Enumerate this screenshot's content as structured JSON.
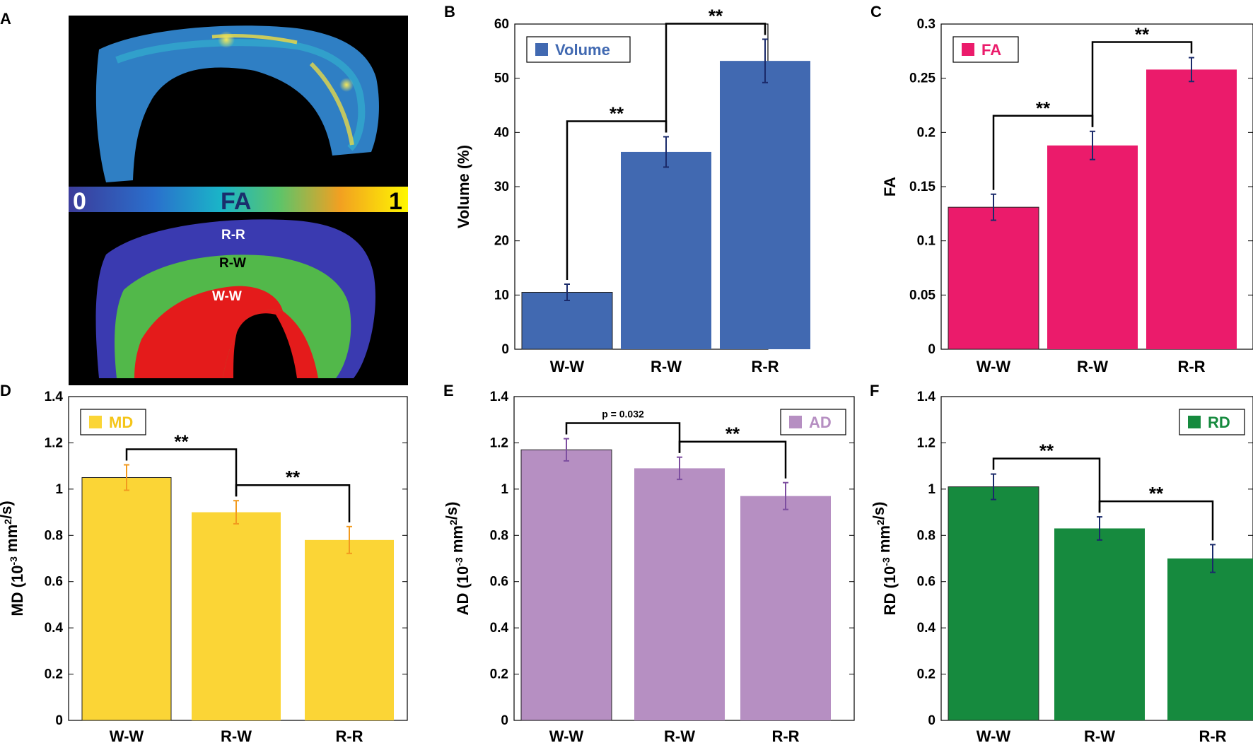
{
  "panel_a": {
    "label": "A",
    "colorbar": {
      "min": "0",
      "name": "FA",
      "max": "1"
    },
    "regions": [
      "R-R",
      "R-W",
      "W-W"
    ]
  },
  "chart_data": [
    {
      "panel": "B",
      "type": "bar",
      "title": "",
      "categories": [
        "W-W",
        "R-W",
        "R-R"
      ],
      "values": [
        10.5,
        36.4,
        53.2
      ],
      "errors": [
        1.5,
        2.8,
        4.0
      ],
      "ylabel": "Volume (%)",
      "ylim": [
        0,
        60
      ],
      "ticks": [
        "0",
        "10",
        "20",
        "30",
        "40",
        "50",
        "60"
      ],
      "legend": {
        "label": "Volume",
        "position": "top-left"
      },
      "color": "#4169b1",
      "text_color": "#4169b1",
      "significance": [
        {
          "from": "W-W",
          "to": "R-W",
          "label": "**"
        },
        {
          "from": "R-W",
          "to": "R-R",
          "label": "**"
        }
      ]
    },
    {
      "panel": "C",
      "type": "bar",
      "title": "",
      "categories": [
        "W-W",
        "R-W",
        "R-R"
      ],
      "values": [
        0.131,
        0.188,
        0.258
      ],
      "errors": [
        0.012,
        0.013,
        0.011
      ],
      "ylabel": "FA",
      "ylim": [
        0,
        0.3
      ],
      "ticks": [
        "0",
        "0.05",
        "0.1",
        "0.15",
        "0.2",
        "0.25",
        "0.3"
      ],
      "legend": {
        "label": "FA",
        "position": "top-left"
      },
      "color": "#eb1b6b",
      "text_color": "#eb1b6b",
      "significance": [
        {
          "from": "W-W",
          "to": "R-W",
          "label": "**"
        },
        {
          "from": "R-W",
          "to": "R-R",
          "label": "**"
        }
      ]
    },
    {
      "panel": "D",
      "type": "bar",
      "title": "",
      "categories": [
        "W-W",
        "R-W",
        "R-R"
      ],
      "values": [
        1.05,
        0.9,
        0.78
      ],
      "errors": [
        0.055,
        0.05,
        0.058
      ],
      "ylabel_main": "MD (10",
      "ylabel_sup": "-3",
      "ylabel_mid": " mm",
      "ylabel_sup2": "2",
      "ylabel_end": "/s)",
      "ylim": [
        0,
        1.4
      ],
      "ticks": [
        "0",
        "0.2",
        "0.4",
        "0.6",
        "0.8",
        "1",
        "1.2",
        "1.4"
      ],
      "legend": {
        "label": "MD",
        "position": "top-left"
      },
      "color": "#fbd536",
      "text_color": "#f5c518",
      "err_color": "#f29a1e",
      "significance": [
        {
          "from": "W-W",
          "to": "R-W",
          "label": "**"
        },
        {
          "from": "R-W",
          "to": "R-R",
          "label": "**"
        }
      ]
    },
    {
      "panel": "E",
      "type": "bar",
      "title": "",
      "categories": [
        "W-W",
        "R-W",
        "R-R"
      ],
      "values": [
        1.17,
        1.09,
        0.97
      ],
      "errors": [
        0.048,
        0.048,
        0.058
      ],
      "ylabel_main": "AD (10",
      "ylabel_sup": "-3",
      "ylabel_mid": " mm",
      "ylabel_sup2": "2",
      "ylabel_end": "/s)",
      "ylim": [
        0,
        1.4
      ],
      "ticks": [
        "0",
        "0.2",
        "0.4",
        "0.6",
        "0.8",
        "1",
        "1.2",
        "1.4"
      ],
      "legend": {
        "label": "AD",
        "position": "top-right"
      },
      "color": "#b68fc2",
      "text_color": "#b68fc2",
      "err_color": "#7d4ea0",
      "significance": [
        {
          "from": "W-W",
          "to": "R-W",
          "label": "p = 0.032",
          "italic_p": true
        },
        {
          "from": "R-W",
          "to": "R-R",
          "label": "**"
        }
      ]
    },
    {
      "panel": "F",
      "type": "bar",
      "title": "",
      "categories": [
        "W-W",
        "R-W",
        "R-R"
      ],
      "values": [
        1.01,
        0.83,
        0.7
      ],
      "errors": [
        0.055,
        0.05,
        0.06
      ],
      "ylabel_main": "RD (10",
      "ylabel_sup": "-3",
      "ylabel_mid": " mm",
      "ylabel_sup2": "2",
      "ylabel_end": "/s)",
      "ylim": [
        0,
        1.4
      ],
      "ticks": [
        "0",
        "0.2",
        "0.4",
        "0.6",
        "0.8",
        "1",
        "1.2",
        "1.4"
      ],
      "legend": {
        "label": "RD",
        "position": "top-right"
      },
      "color": "#168a3e",
      "text_color": "#168a3e",
      "significance": [
        {
          "from": "W-W",
          "to": "R-W",
          "label": "**"
        },
        {
          "from": "R-W",
          "to": "R-R",
          "label": "**"
        }
      ]
    }
  ]
}
